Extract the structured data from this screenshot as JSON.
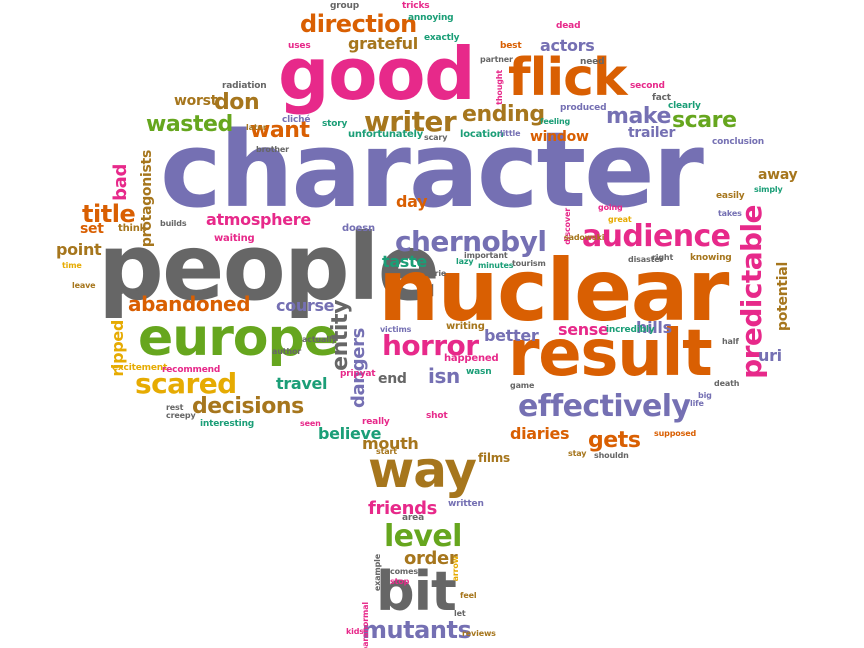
{
  "palette": {
    "purple": "#7570b3",
    "orange": "#d95f02",
    "magenta": "#e7298a",
    "green": "#66a61e",
    "gold": "#a6761d",
    "teal": "#1b9e77",
    "gray": "#666666",
    "yellow": "#e6ab02"
  },
  "words": [
    {
      "text": "character",
      "color": "purple"
    },
    {
      "text": "people",
      "color": "gray"
    },
    {
      "text": "nuclear",
      "color": "orange"
    },
    {
      "text": "good",
      "color": "magenta"
    },
    {
      "text": "result",
      "color": "orange"
    },
    {
      "text": "europe",
      "color": "green"
    },
    {
      "text": "flick",
      "color": "orange"
    },
    {
      "text": "way",
      "color": "gold"
    },
    {
      "text": "bit",
      "color": "gray"
    },
    {
      "text": "effectively",
      "color": "purple"
    },
    {
      "text": "audience",
      "color": "magenta"
    },
    {
      "text": "chernobyl",
      "color": "purple"
    },
    {
      "text": "horror",
      "color": "magenta"
    },
    {
      "text": "predictable",
      "color": "magenta"
    },
    {
      "text": "scared",
      "color": "yellow"
    },
    {
      "text": "writer",
      "color": "gold"
    },
    {
      "text": "direction",
      "color": "orange"
    },
    {
      "text": "decisions",
      "color": "gold"
    },
    {
      "text": "abandoned",
      "color": "orange"
    },
    {
      "text": "atmosphere",
      "color": "magenta"
    },
    {
      "text": "wasted",
      "color": "green"
    },
    {
      "text": "ending",
      "color": "gold"
    },
    {
      "text": "scare",
      "color": "green"
    },
    {
      "text": "make",
      "color": "purple"
    },
    {
      "text": "want",
      "color": "orange"
    },
    {
      "text": "don",
      "color": "gold"
    },
    {
      "text": "title",
      "color": "orange"
    },
    {
      "text": "level",
      "color": "green"
    },
    {
      "text": "mutants",
      "color": "purple"
    },
    {
      "text": "gets",
      "color": "orange"
    },
    {
      "text": "entity",
      "color": "gray"
    },
    {
      "text": "dangers",
      "color": "purple"
    },
    {
      "text": "isn",
      "color": "purple"
    },
    {
      "text": "sense",
      "color": "magenta"
    },
    {
      "text": "hills",
      "color": "purple"
    },
    {
      "text": "course",
      "color": "purple"
    },
    {
      "text": "travel",
      "color": "teal"
    },
    {
      "text": "taste",
      "color": "teal"
    },
    {
      "text": "better",
      "color": "purple"
    },
    {
      "text": "end",
      "color": "gray"
    },
    {
      "text": "actors",
      "color": "purple"
    },
    {
      "text": "grateful",
      "color": "gold"
    },
    {
      "text": "diaries",
      "color": "orange"
    },
    {
      "text": "believe",
      "color": "teal"
    },
    {
      "text": "mouth",
      "color": "gold"
    },
    {
      "text": "friends",
      "color": "magenta"
    },
    {
      "text": "order",
      "color": "gold"
    },
    {
      "text": "day",
      "color": "orange"
    },
    {
      "text": "point",
      "color": "gold"
    },
    {
      "text": "set",
      "color": "orange"
    },
    {
      "text": "bad",
      "color": "magenta"
    },
    {
      "text": "protagonists",
      "color": "gold"
    },
    {
      "text": "ripped",
      "color": "yellow"
    },
    {
      "text": "potential",
      "color": "gold"
    },
    {
      "text": "uri",
      "color": "purple"
    },
    {
      "text": "away",
      "color": "gold"
    },
    {
      "text": "worst",
      "color": "gold"
    },
    {
      "text": "trailer",
      "color": "purple"
    },
    {
      "text": "window",
      "color": "orange"
    },
    {
      "text": "location",
      "color": "teal"
    },
    {
      "text": "unfortunately",
      "color": "teal"
    },
    {
      "text": "films",
      "color": "gold"
    },
    {
      "text": "think",
      "color": "gold"
    },
    {
      "text": "waiting",
      "color": "magenta"
    },
    {
      "text": "doesn",
      "color": "purple"
    },
    {
      "text": "lazy",
      "color": "teal"
    },
    {
      "text": "happened",
      "color": "magenta"
    },
    {
      "text": "victims",
      "color": "purple"
    },
    {
      "text": "writing",
      "color": "gold"
    },
    {
      "text": "wasn",
      "color": "teal"
    },
    {
      "text": "eerie",
      "color": "gray"
    },
    {
      "text": "incredibly",
      "color": "teal"
    },
    {
      "text": "disaster",
      "color": "gray"
    },
    {
      "text": "right",
      "color": "gray"
    },
    {
      "text": "knowing",
      "color": "gold"
    },
    {
      "text": "takes",
      "color": "purple"
    },
    {
      "text": "easily",
      "color": "gold"
    },
    {
      "text": "simply",
      "color": "teal"
    },
    {
      "text": "conclusion",
      "color": "purple"
    },
    {
      "text": "second",
      "color": "magenta"
    },
    {
      "text": "produced",
      "color": "purple"
    },
    {
      "text": "fact",
      "color": "gray"
    },
    {
      "text": "clearly",
      "color": "teal"
    },
    {
      "text": "feeling",
      "color": "teal"
    },
    {
      "text": "little",
      "color": "purple"
    },
    {
      "text": "scary",
      "color": "gray"
    },
    {
      "text": "need",
      "color": "gray"
    },
    {
      "text": "best",
      "color": "orange"
    },
    {
      "text": "annoying",
      "color": "teal"
    },
    {
      "text": "exactly",
      "color": "teal"
    },
    {
      "text": "group",
      "color": "gray"
    },
    {
      "text": "tricks",
      "color": "magenta"
    },
    {
      "text": "uses",
      "color": "magenta"
    },
    {
      "text": "radiation",
      "color": "gray"
    },
    {
      "text": "cliché",
      "color": "purple"
    },
    {
      "text": "later",
      "color": "gold"
    },
    {
      "text": "story",
      "color": "teal"
    },
    {
      "text": "brother",
      "color": "gray"
    },
    {
      "text": "excitement",
      "color": "yellow"
    },
    {
      "text": "recommend",
      "color": "magenta"
    },
    {
      "text": "literally",
      "color": "gray"
    },
    {
      "text": "author",
      "color": "gray"
    },
    {
      "text": "actually",
      "color": "gray"
    },
    {
      "text": "rest",
      "color": "gray"
    },
    {
      "text": "creepy",
      "color": "gray"
    },
    {
      "text": "interesting",
      "color": "teal"
    },
    {
      "text": "really",
      "color": "magenta"
    },
    {
      "text": "seen",
      "color": "magenta"
    },
    {
      "text": "start",
      "color": "gold"
    },
    {
      "text": "shot",
      "color": "magenta"
    },
    {
      "text": "stay",
      "color": "gold"
    },
    {
      "text": "shouldn",
      "color": "gray"
    },
    {
      "text": "supposed",
      "color": "orange"
    },
    {
      "text": "big",
      "color": "purple"
    },
    {
      "text": "life",
      "color": "purple"
    },
    {
      "text": "death",
      "color": "gray"
    },
    {
      "text": "half",
      "color": "gray"
    },
    {
      "text": "game",
      "color": "gray"
    },
    {
      "text": "tourism",
      "color": "gray"
    },
    {
      "text": "minutes",
      "color": "teal"
    },
    {
      "text": "important",
      "color": "gray"
    },
    {
      "text": "great",
      "color": "yellow"
    },
    {
      "text": "going",
      "color": "magenta"
    },
    {
      "text": "discover",
      "color": "magenta"
    },
    {
      "text": "sadowski",
      "color": "gold"
    },
    {
      "text": "partner",
      "color": "gray"
    },
    {
      "text": "thought",
      "color": "magenta"
    },
    {
      "text": "dead",
      "color": "magenta"
    },
    {
      "text": "time",
      "color": "yellow"
    },
    {
      "text": "leave",
      "color": "gold"
    },
    {
      "text": "builds",
      "color": "gray"
    },
    {
      "text": "written",
      "color": "purple"
    },
    {
      "text": "area",
      "color": "gray"
    },
    {
      "text": "example",
      "color": "gray"
    },
    {
      "text": "comes",
      "color": "gray"
    },
    {
      "text": "stop",
      "color": "magenta"
    },
    {
      "text": "paranormal",
      "color": "magenta"
    },
    {
      "text": "let",
      "color": "gray"
    },
    {
      "text": "feel",
      "color": "gold"
    },
    {
      "text": "reviews",
      "color": "gold"
    },
    {
      "text": "kids",
      "color": "magenta"
    },
    {
      "text": "arrow",
      "color": "yellow"
    },
    {
      "text": "pripyat",
      "color": "magenta"
    }
  ]
}
